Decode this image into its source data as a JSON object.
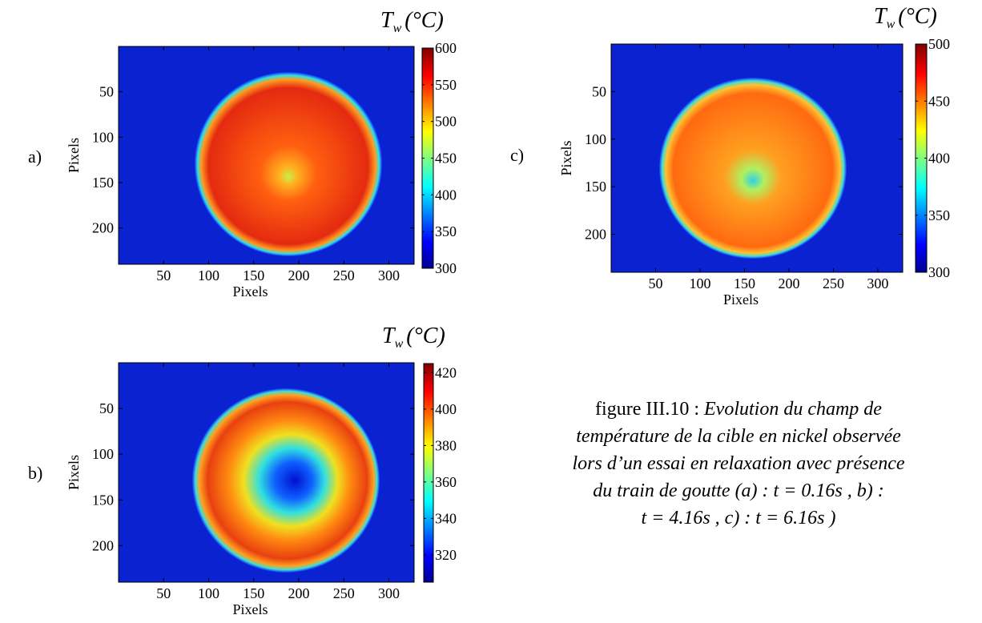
{
  "panels": [
    {
      "label": "a)",
      "image": {
        "xlabel": "Pixels",
        "ylabel": "Pixels",
        "xlim": [
          0,
          328
        ],
        "ylim": [
          0,
          240
        ],
        "xticks": [
          50,
          100,
          150,
          200,
          250,
          300
        ],
        "yticks": [
          50,
          100,
          150,
          200
        ]
      },
      "colorbar": {
        "symbol": "T",
        "subscript": "w",
        "unit": "(°C)",
        "clim": [
          300,
          600
        ],
        "ticks": [
          300,
          350,
          400,
          450,
          500,
          550,
          600
        ]
      }
    },
    {
      "label": "b)",
      "image": {
        "xlabel": "Pixels",
        "ylabel": "Pixels",
        "xlim": [
          0,
          328
        ],
        "ylim": [
          0,
          240
        ],
        "xticks": [
          50,
          100,
          150,
          200,
          250,
          300
        ],
        "yticks": [
          50,
          100,
          150,
          200
        ]
      },
      "colorbar": {
        "symbol": "T",
        "subscript": "w",
        "unit": "(°C)",
        "clim": [
          305,
          425
        ],
        "ticks": [
          320,
          340,
          360,
          380,
          400,
          420
        ]
      }
    },
    {
      "label": "c)",
      "image": {
        "xlabel": "Pixels",
        "ylabel": "Pixels",
        "xlim": [
          0,
          328
        ],
        "ylim": [
          0,
          240
        ],
        "xticks": [
          50,
          100,
          150,
          200,
          250,
          300
        ],
        "yticks": [
          50,
          100,
          150,
          200
        ]
      },
      "colorbar": {
        "symbol": "T",
        "subscript": "w",
        "unit": "(°C)",
        "clim": [
          300,
          500
        ],
        "ticks": [
          300,
          350,
          400,
          450,
          500
        ]
      }
    }
  ],
  "caption": {
    "prefix": "figure III.10 : ",
    "lines": [
      "Evolution du champ de",
      "température de la cible en nickel observée",
      "lors d’un essai en relaxation avec présence",
      "du train de goutte (a) :  t = 0.16s , b) :",
      "t = 4.16s , c) : t = 6.16s )"
    ]
  }
}
